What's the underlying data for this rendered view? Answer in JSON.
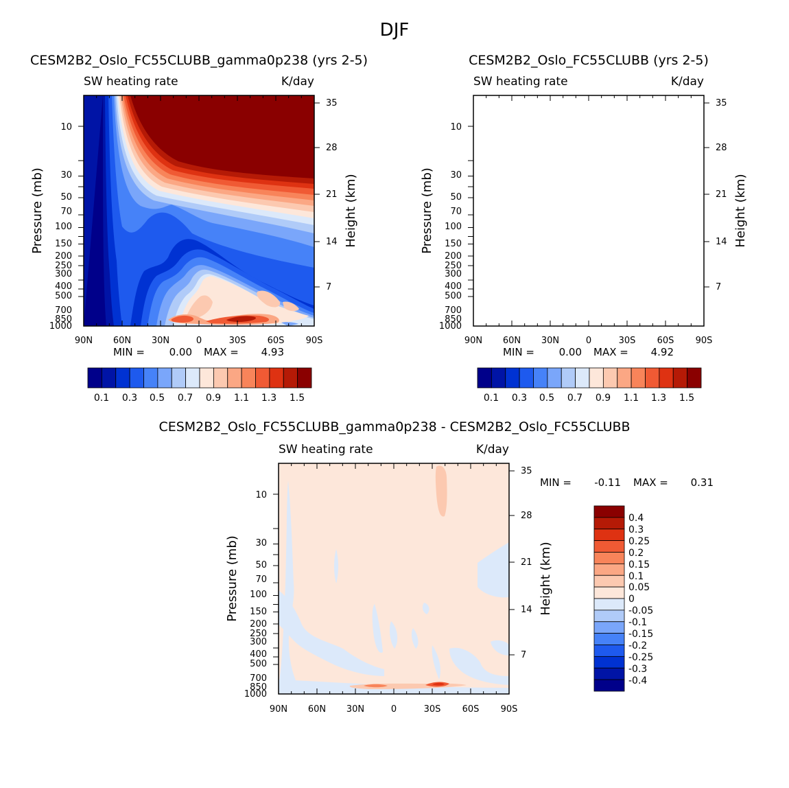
{
  "figure_title": "DJF",
  "colors": {
    "main_levels": [
      "#00008a",
      "#0014a6",
      "#0032d2",
      "#1e5aee",
      "#4682f8",
      "#7aa6fa",
      "#b0cbf8",
      "#dce9fa",
      "#fde7da",
      "#fcc9b0",
      "#fba784",
      "#f8845a",
      "#f05a34",
      "#de3212",
      "#b51a06",
      "#8a0000"
    ],
    "diff_levels": [
      "#00008a",
      "#0014a6",
      "#0032d2",
      "#1e5aee",
      "#4682f8",
      "#7aa6fa",
      "#b0cbf8",
      "#dce9fa",
      "#fde7da",
      "#fcc9b0",
      "#fba784",
      "#f8845a",
      "#f05a34",
      "#de3212",
      "#b51a06",
      "#8a0000"
    ]
  },
  "chart_data": [
    {
      "type": "heatmap",
      "title": "CESM2B2_Oslo_FC55CLUBB_gamma0p238 (yrs 2-5)",
      "variable": "SW heating rate",
      "units": "K/day",
      "ylabel": "Pressure (mb)",
      "ylabel_right": "Height (km)",
      "x_ticks": [
        "90N",
        "60N",
        "30N",
        "0",
        "30S",
        "60S",
        "90S"
      ],
      "y_ticks": [
        "10",
        "30",
        "50",
        "70",
        "100",
        "150",
        "200",
        "250",
        "300",
        "400",
        "500",
        "700",
        "850",
        "1000"
      ],
      "y_ticks_right": [
        "35",
        "28",
        "21",
        "14",
        "7"
      ],
      "stats": {
        "min_label": "MIN =",
        "min": "0.00",
        "max_label": "MAX =",
        "max": "4.93"
      },
      "colorbar_labels": [
        "0.1",
        "0.3",
        "0.5",
        "0.7",
        "0.9",
        "1.1",
        "1.3",
        "1.5"
      ]
    },
    {
      "type": "heatmap",
      "title": "CESM2B2_Oslo_FC55CLUBB (yrs 2-5)",
      "variable": "SW heating rate",
      "units": "K/day",
      "ylabel": "Pressure (mb)",
      "ylabel_right": "Height (km)",
      "x_ticks": [
        "90N",
        "60N",
        "30N",
        "0",
        "30S",
        "60S",
        "90S"
      ],
      "y_ticks": [
        "10",
        "30",
        "50",
        "70",
        "100",
        "150",
        "200",
        "250",
        "300",
        "400",
        "500",
        "700",
        "850",
        "1000"
      ],
      "y_ticks_right": [
        "35",
        "28",
        "21",
        "14",
        "7"
      ],
      "stats": {
        "min_label": "MIN =",
        "min": "0.00",
        "max_label": "MAX =",
        "max": "4.92"
      },
      "colorbar_labels": [
        "0.1",
        "0.3",
        "0.5",
        "0.7",
        "0.9",
        "1.1",
        "1.3",
        "1.5"
      ]
    },
    {
      "type": "heatmap",
      "title": "CESM2B2_Oslo_FC55CLUBB_gamma0p238 - CESM2B2_Oslo_FC55CLUBB",
      "variable": "SW heating rate",
      "units": "K/day",
      "ylabel": "Pressure (mb)",
      "ylabel_right": "Height (km)",
      "x_ticks": [
        "90N",
        "60N",
        "30N",
        "0",
        "30S",
        "60S",
        "90S"
      ],
      "y_ticks": [
        "10",
        "30",
        "50",
        "70",
        "100",
        "150",
        "200",
        "250",
        "300",
        "400",
        "500",
        "700",
        "850",
        "1000"
      ],
      "y_ticks_right": [
        "35",
        "28",
        "21",
        "14",
        "7"
      ],
      "stats": {
        "min_label": "MIN =",
        "min": "-0.11",
        "max_label": "MAX =",
        "max": "0.31"
      },
      "colorbar_labels": [
        "0.4",
        "0.3",
        "0.25",
        "0.2",
        "0.15",
        "0.1",
        "0.05",
        "0",
        "-0.05",
        "-0.1",
        "-0.15",
        "-0.2",
        "-0.25",
        "-0.3",
        "-0.4"
      ]
    }
  ]
}
